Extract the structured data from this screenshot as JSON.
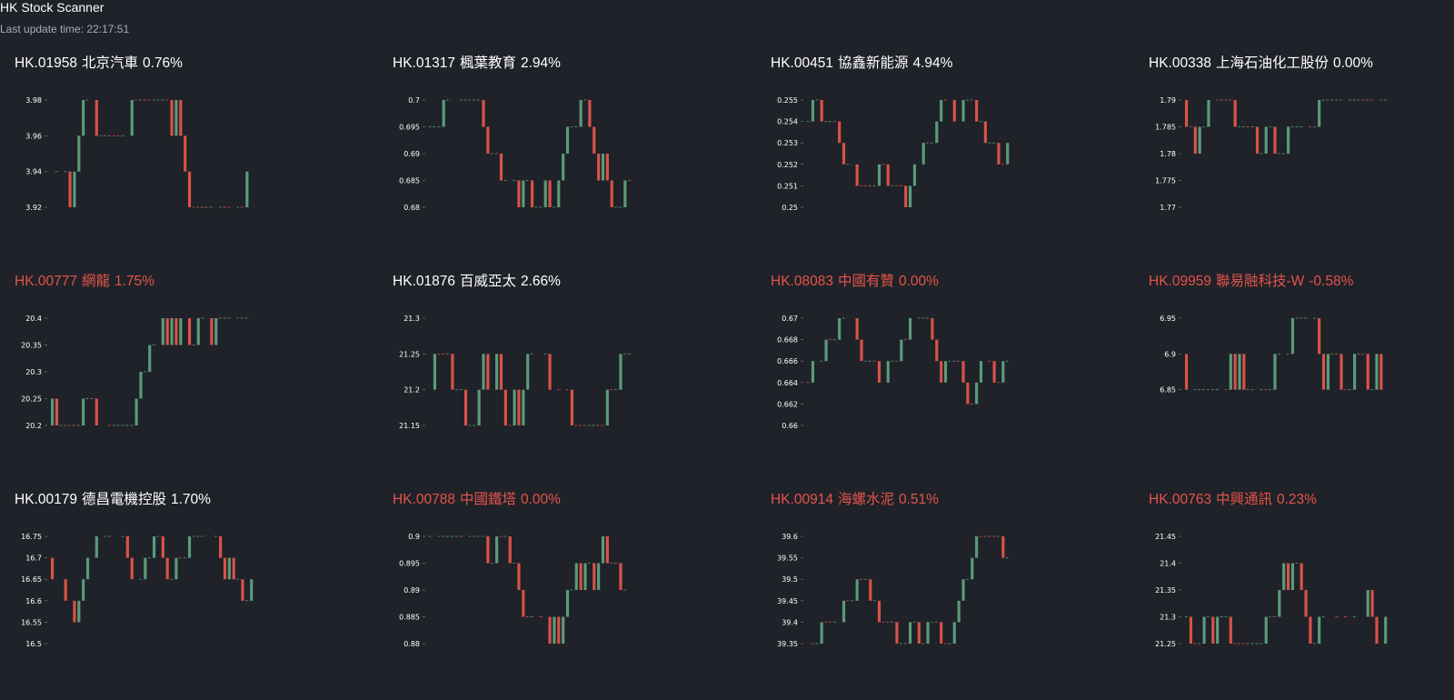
{
  "app": {
    "title": "HK Stock Scanner",
    "update_label": "Last update time:",
    "update_time": "22:17:51"
  },
  "colors": {
    "background": "#1f2228",
    "up": "#5b9b79",
    "down": "#d9524a",
    "title_normal": "#ffffff",
    "title_alert": "#e5534b"
  },
  "panels": [
    {
      "code": "HK.01958",
      "name": "北京汽車",
      "pct": "0.76%",
      "alert": false,
      "chart_data": {
        "type": "candlestick",
        "y_ticks": [
          "3.98",
          "3.96",
          "3.94",
          "3.92"
        ],
        "ylim": [
          3.92,
          3.98
        ]
      }
    },
    {
      "code": "HK.01317",
      "name": "楓葉教育",
      "pct": "2.94%",
      "alert": false,
      "chart_data": {
        "type": "candlestick",
        "y_ticks": [
          "0.7",
          "0.695",
          "0.69",
          "0.685",
          "0.68"
        ],
        "ylim": [
          0.68,
          0.7
        ]
      }
    },
    {
      "code": "HK.00451",
      "name": "協鑫新能源",
      "pct": "4.94%",
      "alert": false,
      "chart_data": {
        "type": "candlestick",
        "y_ticks": [
          "0.255",
          "0.254",
          "0.253",
          "0.252",
          "0.251",
          "0.25"
        ],
        "ylim": [
          0.25,
          0.255
        ]
      }
    },
    {
      "code": "HK.00338",
      "name": "上海石油化工股份",
      "pct": "0.00%",
      "alert": false,
      "chart_data": {
        "type": "candlestick",
        "y_ticks": [
          "1.79",
          "1.785",
          "1.78",
          "1.775",
          "1.77"
        ],
        "ylim": [
          1.77,
          1.79
        ]
      }
    },
    {
      "code": "HK.00777",
      "name": "網龍",
      "pct": "1.75%",
      "alert": true,
      "chart_data": {
        "type": "candlestick",
        "y_ticks": [
          "20.4",
          "20.35",
          "20.3",
          "20.25",
          "20.2"
        ],
        "ylim": [
          20.2,
          20.4
        ]
      }
    },
    {
      "code": "HK.01876",
      "name": "百威亞太",
      "pct": "2.66%",
      "alert": false,
      "chart_data": {
        "type": "candlestick",
        "y_ticks": [
          "21.3",
          "21.25",
          "21.2",
          "21.15"
        ],
        "ylim": [
          21.15,
          21.3
        ]
      }
    },
    {
      "code": "HK.08083",
      "name": "中國有贊",
      "pct": "0.00%",
      "alert": true,
      "chart_data": {
        "type": "candlestick",
        "y_ticks": [
          "0.67",
          "0.668",
          "0.666",
          "0.664",
          "0.662",
          "0.66"
        ],
        "ylim": [
          0.66,
          0.67
        ]
      }
    },
    {
      "code": "HK.09959",
      "name": "聯易融科技-W",
      "pct": "-0.58%",
      "alert": true,
      "chart_data": {
        "type": "candlestick",
        "y_ticks": [
          "6.95",
          "6.9",
          "6.85"
        ],
        "ylim": [
          6.8,
          6.95
        ]
      }
    },
    {
      "code": "HK.00179",
      "name": "德昌電機控股",
      "pct": "1.70%",
      "alert": false,
      "chart_data": {
        "type": "candlestick",
        "y_ticks": [
          "16.75",
          "16.7",
          "16.65",
          "16.6",
          "16.55",
          "16.5"
        ],
        "ylim": [
          16.5,
          16.75
        ]
      }
    },
    {
      "code": "HK.00788",
      "name": "中國鐵塔",
      "pct": "0.00%",
      "alert": true,
      "chart_data": {
        "type": "candlestick",
        "y_ticks": [
          "0.9",
          "0.895",
          "0.89",
          "0.885",
          "0.88"
        ],
        "ylim": [
          0.88,
          0.9
        ]
      }
    },
    {
      "code": "HK.00914",
      "name": "海螺水泥",
      "pct": "0.51%",
      "alert": true,
      "chart_data": {
        "type": "candlestick",
        "y_ticks": [
          "39.6",
          "39.55",
          "39.5",
          "39.45",
          "39.4",
          "39.35"
        ],
        "ylim": [
          39.35,
          39.6
        ]
      }
    },
    {
      "code": "HK.00763",
      "name": "中興通訊",
      "pct": "0.23%",
      "alert": true,
      "chart_data": {
        "type": "candlestick",
        "y_ticks": [
          "21.45",
          "21.4",
          "21.35",
          "21.3",
          "21.25"
        ],
        "ylim": [
          21.25,
          21.45
        ]
      }
    }
  ]
}
